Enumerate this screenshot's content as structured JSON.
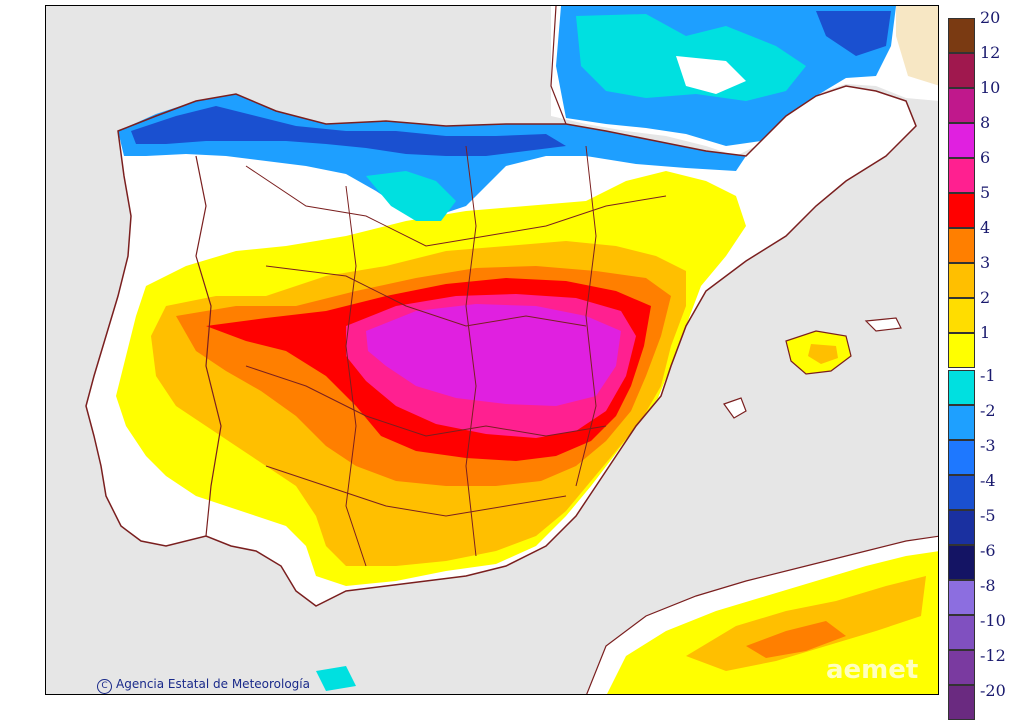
{
  "credit": "Agencia Estatal de Meteorología",
  "credit_symbol": "C",
  "watermark": "aemet",
  "colors": {
    "sea": "#e6e6e6",
    "land_neutral": "#ffffff",
    "borders": "#7a1f1f"
  },
  "legend": [
    {
      "label": "20",
      "color": "#7a3a12"
    },
    {
      "label": "12",
      "color": "#a0184e"
    },
    {
      "label": "10",
      "color": "#c0188c"
    },
    {
      "label": "8",
      "color": "#e020e0"
    },
    {
      "label": "6",
      "color": "#ff2090"
    },
    {
      "label": "5",
      "color": "#ff0000"
    },
    {
      "label": "4",
      "color": "#ff7f00"
    },
    {
      "label": "3",
      "color": "#ffbf00"
    },
    {
      "label": "2",
      "color": "#ffdd00"
    },
    {
      "label": "1",
      "color": "#ffff00"
    },
    {
      "label": "-1",
      "color": "#00e0e0"
    },
    {
      "label": "-2",
      "color": "#1ea0ff"
    },
    {
      "label": "-3",
      "color": "#1e78ff"
    },
    {
      "label": "-4",
      "color": "#1a50d0"
    },
    {
      "label": "-5",
      "color": "#1a30a0"
    },
    {
      "label": "-6",
      "color": "#141464"
    },
    {
      "label": "-8",
      "color": "#8c6ee0"
    },
    {
      "label": "-10",
      "color": "#8050c0"
    },
    {
      "label": "-12",
      "color": "#7a3aa0"
    },
    {
      "label": "-20",
      "color": "#6a2a80"
    }
  ]
}
